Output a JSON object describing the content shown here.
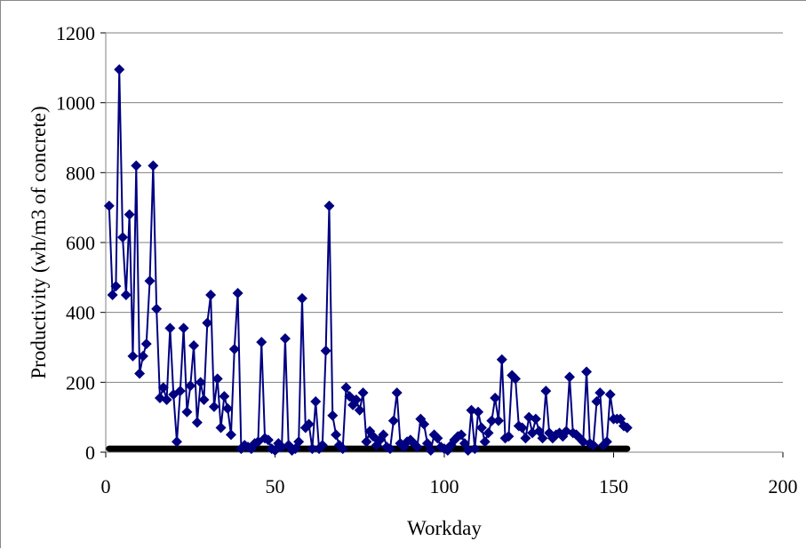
{
  "chart_data": {
    "type": "line",
    "title": "",
    "xlabel": "Workday",
    "ylabel": "Productivity (wh/m3 of concrete)",
    "xlim": [
      0,
      200
    ],
    "ylim": [
      0,
      1200
    ],
    "x_ticks": [
      "0",
      "50",
      "100",
      "150",
      "200"
    ],
    "y_ticks": [
      "0",
      "200",
      "400",
      "600",
      "800",
      "1000",
      "1200"
    ],
    "grid": "horizontal",
    "legend": "none",
    "series_color": "#000080",
    "baseline": {
      "y": 10,
      "x_range": [
        1,
        154
      ],
      "color": "#000000"
    },
    "series": [
      {
        "marker": "diamond",
        "x": [
          1,
          2,
          3,
          4,
          5,
          6,
          7,
          8,
          9,
          10,
          11,
          12,
          13,
          14,
          15,
          16,
          17,
          18,
          19,
          20,
          21,
          22,
          23,
          24,
          25,
          26,
          27,
          28,
          29,
          30,
          31,
          32,
          33,
          34,
          35,
          36,
          37,
          38,
          39,
          40,
          41,
          42,
          43,
          44,
          45,
          46,
          47,
          48,
          49,
          50,
          51,
          52,
          53,
          54,
          55,
          56,
          57,
          58,
          59,
          60,
          61,
          62,
          63,
          64,
          65,
          66,
          67,
          68,
          69,
          70,
          71,
          72,
          73,
          74,
          75,
          76,
          77,
          78,
          79,
          80,
          81,
          82,
          83,
          84,
          85,
          86,
          87,
          88,
          89,
          90,
          91,
          92,
          93,
          94,
          95,
          96,
          97,
          98,
          99,
          100,
          101,
          102,
          103,
          104,
          105,
          106,
          107,
          108,
          109,
          110,
          111,
          112,
          113,
          114,
          115,
          116,
          117,
          118,
          119,
          120,
          121,
          122,
          123,
          124,
          125,
          126,
          127,
          128,
          129,
          130,
          131,
          132,
          133,
          134,
          135,
          136,
          137,
          138,
          139,
          140,
          141,
          142,
          143,
          144,
          145,
          146,
          147,
          148,
          149,
          150,
          151,
          152,
          153,
          154
        ],
        "y": [
          705,
          450,
          475,
          1095,
          615,
          450,
          680,
          275,
          820,
          225,
          275,
          310,
          490,
          820,
          410,
          155,
          185,
          150,
          355,
          165,
          30,
          175,
          355,
          115,
          190,
          305,
          85,
          200,
          150,
          370,
          450,
          130,
          210,
          70,
          160,
          125,
          50,
          295,
          455,
          10,
          20,
          15,
          10,
          25,
          30,
          315,
          40,
          35,
          10,
          5,
          25,
          15,
          325,
          20,
          5,
          10,
          30,
          440,
          70,
          80,
          10,
          145,
          10,
          20,
          290,
          705,
          105,
          50,
          20,
          10,
          185,
          160,
          135,
          150,
          120,
          170,
          30,
          60,
          45,
          20,
          35,
          50,
          15,
          10,
          90,
          170,
          25,
          15,
          30,
          35,
          25,
          15,
          95,
          80,
          25,
          5,
          50,
          40,
          15,
          10,
          5,
          20,
          35,
          45,
          50,
          25,
          5,
          120,
          10,
          115,
          70,
          30,
          55,
          90,
          155,
          90,
          265,
          40,
          45,
          220,
          210,
          75,
          70,
          40,
          100,
          55,
          95,
          60,
          40,
          175,
          55,
          40,
          50,
          55,
          45,
          60,
          215,
          55,
          50,
          40,
          30,
          230,
          25,
          20,
          145,
          170,
          20,
          30,
          165,
          95,
          95,
          95,
          75,
          70
        ]
      }
    ]
  }
}
